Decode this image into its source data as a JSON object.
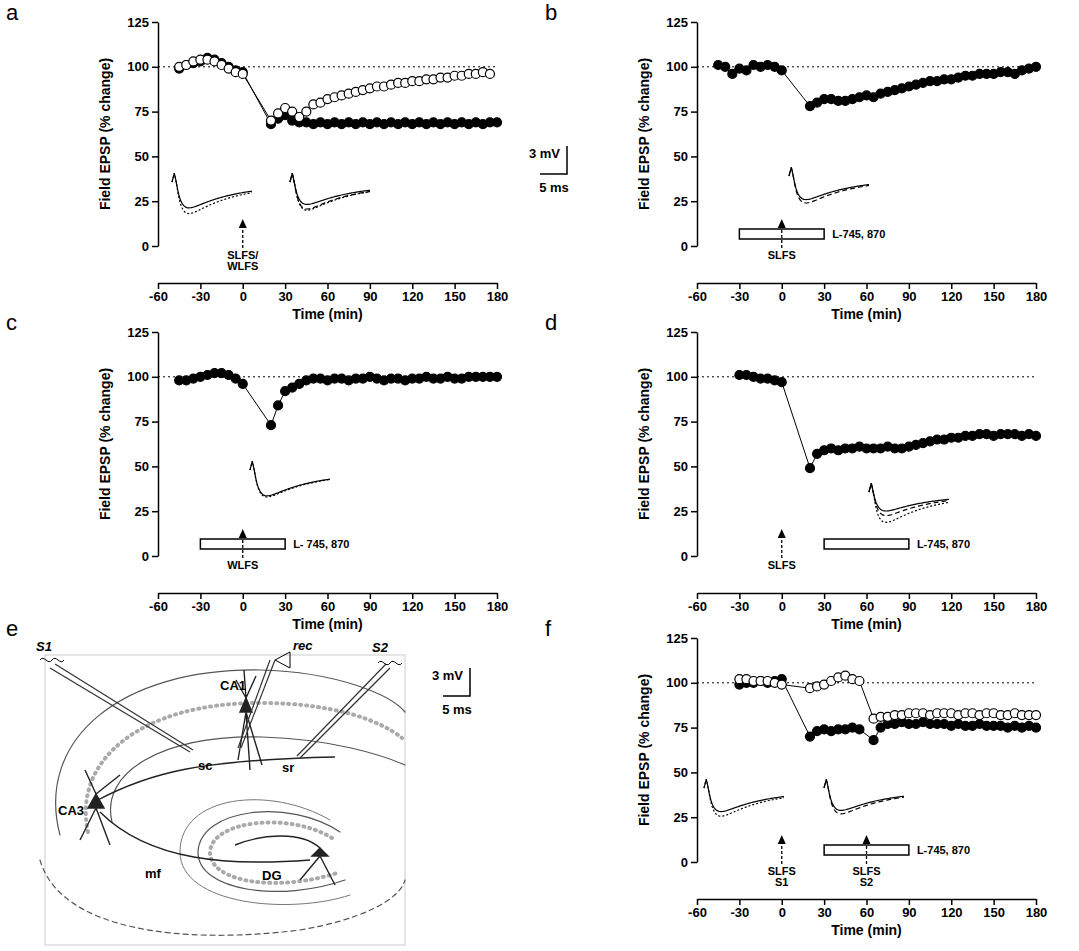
{
  "chart_data": [
    {
      "type": "line",
      "panel_label": "a",
      "x_label": "Time (min)",
      "y_label": "Field EPSP (% change)",
      "xlim": [
        -60,
        180
      ],
      "xticks": [
        -60,
        -30,
        0,
        30,
        60,
        90,
        120,
        150,
        180
      ],
      "ylim": [
        0,
        125
      ],
      "yticks": [
        0,
        25,
        50,
        75,
        100,
        125
      ],
      "baseline": 100,
      "series": [
        {
          "color": "#000000",
          "marker": "circle",
          "line_style": "solid",
          "x": [
            -45,
            -40,
            -35,
            -30,
            -25,
            -20,
            -15,
            -10,
            -5,
            0,
            20,
            25,
            30,
            35,
            40,
            45,
            50,
            55,
            60,
            65,
            70,
            75,
            80,
            85,
            90,
            95,
            100,
            105,
            110,
            115,
            120,
            125,
            130,
            135,
            140,
            145,
            150,
            155,
            160,
            165,
            170,
            175,
            180
          ],
          "values": [
            99,
            101,
            102,
            103,
            105,
            104,
            102,
            100,
            98,
            97,
            68,
            71,
            73,
            70,
            69,
            69,
            68,
            69,
            68,
            69,
            68,
            69,
            68,
            69,
            68,
            69,
            68,
            69,
            68,
            69,
            68,
            69,
            68,
            69,
            68,
            69,
            68,
            69,
            68,
            69,
            68,
            69,
            69
          ]
        },
        {
          "color": "#000000",
          "marker": "open-circle",
          "line_style": "solid",
          "x": [
            -45,
            -40,
            -35,
            -30,
            -25,
            -20,
            -15,
            -10,
            -5,
            0,
            20,
            25,
            30,
            35,
            40,
            45,
            50,
            55,
            60,
            65,
            70,
            75,
            80,
            85,
            90,
            95,
            100,
            105,
            110,
            115,
            120,
            125,
            130,
            135,
            140,
            145,
            150,
            155,
            160,
            165,
            170,
            175
          ],
          "values": [
            100,
            101,
            103,
            104,
            104,
            103,
            101,
            99,
            97,
            96,
            70,
            74,
            77,
            75,
            72,
            75,
            79,
            80,
            82,
            83,
            84,
            85,
            86,
            87,
            88,
            89,
            89,
            90,
            91,
            91,
            92,
            92,
            93,
            93,
            94,
            94,
            95,
            95,
            96,
            96,
            97,
            96
          ]
        }
      ],
      "annotations": [
        {
          "text": [
            "SLFS/",
            "WLFS"
          ],
          "x": 0
        }
      ],
      "drug_bars": []
    },
    {
      "type": "line",
      "panel_label": "b",
      "x_label": "Time (min)",
      "y_label": "Field EPSP (% change)",
      "xlim": [
        -60,
        180
      ],
      "xticks": [
        -60,
        -30,
        0,
        30,
        60,
        90,
        120,
        150,
        180
      ],
      "ylim": [
        0,
        125
      ],
      "yticks": [
        0,
        25,
        50,
        75,
        100,
        125
      ],
      "baseline": 100,
      "series": [
        {
          "color": "#000000",
          "marker": "circle",
          "line_style": "solid",
          "x": [
            -45,
            -40,
            -35,
            -30,
            -25,
            -20,
            -15,
            -10,
            -5,
            0,
            20,
            25,
            30,
            35,
            40,
            45,
            50,
            55,
            60,
            65,
            70,
            75,
            80,
            85,
            90,
            95,
            100,
            105,
            110,
            115,
            120,
            125,
            130,
            135,
            140,
            145,
            150,
            155,
            160,
            165,
            170,
            175,
            180
          ],
          "values": [
            101,
            100,
            96,
            99,
            98,
            101,
            100,
            101,
            100,
            98,
            78,
            80,
            82,
            82,
            81,
            81,
            82,
            83,
            84,
            83,
            85,
            86,
            87,
            88,
            89,
            90,
            91,
            92,
            92,
            93,
            93,
            94,
            95,
            95,
            96,
            96,
            96,
            97,
            97,
            96,
            98,
            99,
            100
          ]
        }
      ],
      "annotations": [
        {
          "text": [
            "SLFS"
          ],
          "x": 0
        }
      ],
      "drug_bars": [
        {
          "label": "L-745, 870",
          "start": -30,
          "end": 30
        }
      ]
    },
    {
      "type": "line",
      "panel_label": "c",
      "x_label": "Time (min)",
      "y_label": "Field EPSP (% change)",
      "xlim": [
        -60,
        180
      ],
      "xticks": [
        -60,
        -30,
        0,
        30,
        60,
        90,
        120,
        150,
        180
      ],
      "ylim": [
        0,
        125
      ],
      "yticks": [
        0,
        25,
        50,
        75,
        100,
        125
      ],
      "baseline": 100,
      "series": [
        {
          "color": "#000000",
          "marker": "circle",
          "line_style": "solid",
          "x": [
            -45,
            -40,
            -35,
            -30,
            -25,
            -20,
            -15,
            -10,
            -5,
            0,
            20,
            25,
            30,
            35,
            40,
            45,
            50,
            55,
            60,
            65,
            70,
            75,
            80,
            85,
            90,
            95,
            100,
            105,
            110,
            115,
            120,
            125,
            130,
            135,
            140,
            145,
            150,
            155,
            160,
            165,
            170,
            175,
            180
          ],
          "values": [
            98,
            98,
            99,
            100,
            101,
            102,
            102,
            101,
            99,
            96,
            73,
            84,
            92,
            94,
            96,
            98,
            99,
            99,
            98,
            99,
            99,
            98,
            99,
            99,
            100,
            99,
            98,
            99,
            99,
            98,
            99,
            99,
            100,
            99,
            99,
            100,
            99,
            99,
            100,
            100,
            100,
            100,
            100
          ]
        }
      ],
      "annotations": [
        {
          "text": [
            "WLFS"
          ],
          "x": 0
        }
      ],
      "drug_bars": [
        {
          "label": "L- 745, 870",
          "start": -30,
          "end": 30
        }
      ]
    },
    {
      "type": "line",
      "panel_label": "d",
      "x_label": "Time (min)",
      "y_label": "Field EPSP (% change)",
      "xlim": [
        -60,
        180
      ],
      "xticks": [
        -60,
        -30,
        0,
        30,
        60,
        90,
        120,
        150,
        180
      ],
      "ylim": [
        0,
        125
      ],
      "yticks": [
        0,
        25,
        50,
        75,
        100,
        125
      ],
      "baseline": 100,
      "series": [
        {
          "color": "#000000",
          "marker": "circle",
          "line_style": "solid",
          "x": [
            -30,
            -25,
            -20,
            -15,
            -10,
            -5,
            0,
            20,
            25,
            30,
            35,
            40,
            45,
            50,
            55,
            60,
            65,
            70,
            75,
            80,
            85,
            90,
            95,
            100,
            105,
            110,
            115,
            120,
            125,
            130,
            135,
            140,
            145,
            150,
            155,
            160,
            165,
            170,
            175,
            180
          ],
          "values": [
            101,
            101,
            100,
            99,
            99,
            98,
            97,
            49,
            57,
            59,
            60,
            59,
            60,
            60,
            61,
            60,
            60,
            60,
            61,
            60,
            60,
            61,
            62,
            63,
            64,
            65,
            65,
            66,
            66,
            67,
            67,
            68,
            68,
            67,
            68,
            68,
            68,
            67,
            68,
            67
          ]
        }
      ],
      "annotations": [
        {
          "text": [
            "SLFS"
          ],
          "x": 0
        }
      ],
      "drug_bars": [
        {
          "label": "L-745, 870",
          "start": 30,
          "end": 90
        }
      ]
    },
    {
      "type": "line",
      "panel_label": "f",
      "x_label": "Time (min)",
      "y_label": "Field EPSP (% change)",
      "xlim": [
        -60,
        180
      ],
      "xticks": [
        -60,
        -30,
        0,
        30,
        60,
        90,
        120,
        150,
        180
      ],
      "ylim": [
        0,
        125
      ],
      "yticks": [
        0,
        25,
        50,
        75,
        100,
        125
      ],
      "baseline": 100,
      "series": [
        {
          "color": "#000000",
          "marker": "circle",
          "line_style": "solid",
          "x": [
            -30,
            -25,
            -20,
            -15,
            -10,
            -5,
            0,
            20,
            25,
            30,
            35,
            40,
            45,
            50,
            55,
            65,
            70,
            75,
            80,
            85,
            90,
            95,
            100,
            105,
            110,
            115,
            120,
            125,
            130,
            135,
            140,
            145,
            150,
            155,
            160,
            165,
            170,
            175,
            180
          ],
          "values": [
            99,
            100,
            100,
            101,
            100,
            101,
            102,
            70,
            73,
            74,
            73,
            74,
            74,
            75,
            74,
            68,
            75,
            77,
            77,
            78,
            77,
            77,
            78,
            77,
            77,
            77,
            76,
            77,
            76,
            76,
            77,
            76,
            76,
            76,
            75,
            76,
            75,
            76,
            75
          ]
        },
        {
          "color": "#000000",
          "marker": "open-circle",
          "line_style": "solid",
          "x": [
            -30,
            -25,
            -20,
            -15,
            -10,
            -5,
            0,
            20,
            25,
            30,
            35,
            40,
            45,
            50,
            55,
            65,
            70,
            75,
            80,
            85,
            90,
            95,
            100,
            105,
            110,
            115,
            120,
            125,
            130,
            135,
            140,
            145,
            150,
            155,
            160,
            165,
            170,
            175,
            180
          ],
          "values": [
            102,
            102,
            101,
            101,
            101,
            100,
            99,
            97,
            98,
            99,
            101,
            103,
            104,
            102,
            101,
            80,
            81,
            81,
            82,
            82,
            83,
            83,
            83,
            82,
            83,
            83,
            83,
            82,
            83,
            83,
            82,
            83,
            83,
            82,
            82,
            83,
            82,
            82,
            82
          ]
        }
      ],
      "annotations": [
        {
          "text": [
            "SLFS",
            "S1"
          ],
          "x": 0
        },
        {
          "text": [
            "SLFS",
            "S2"
          ],
          "x": 60
        }
      ],
      "drug_bars": [
        {
          "label": "L-745, 870",
          "start": 30,
          "end": 90
        }
      ]
    }
  ],
  "scale_bars": [
    {
      "voltage": "3 mV",
      "time": "5 ms"
    },
    {
      "voltage": "3 mV",
      "time": "5 ms"
    }
  ],
  "diagram": {
    "panel_label": "e",
    "electrodes": [
      "S1",
      "S2",
      "rec"
    ],
    "regions": [
      "CA1",
      "CA3",
      "DG"
    ],
    "pathways": [
      "sc",
      "sr",
      "mf"
    ]
  }
}
